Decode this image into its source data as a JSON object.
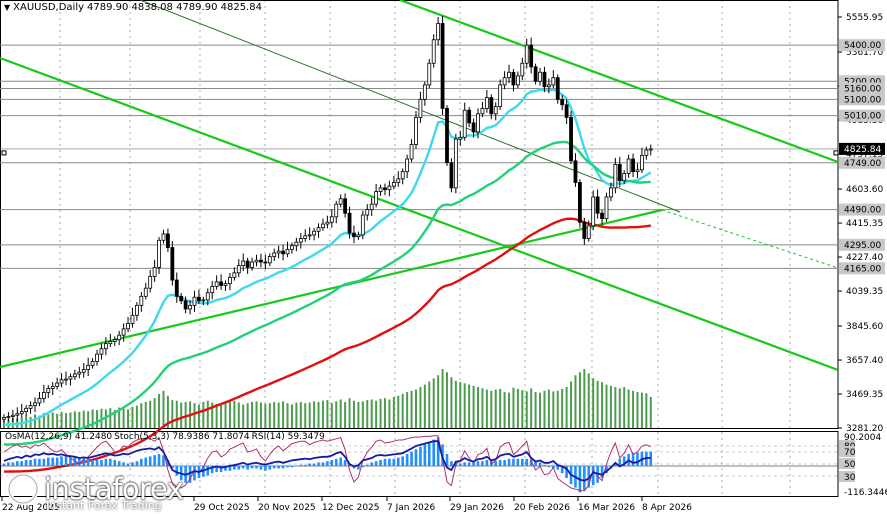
{
  "header": {
    "symbol_timeframe": "XAUUSD,Daily",
    "ohlc": "4789.90 4838.08 4789.90 4825.84"
  },
  "subwindow": {
    "osma_label": "OsMA(12,26,9) 41.2480",
    "stoch_label": "Stoch(5,3,3) 78.9386 71.8074",
    "rsi_label": "RSI(14) 59.3479"
  },
  "watermark": {
    "name": "instaforex",
    "tagline": "Instant Forex Trading"
  },
  "colors": {
    "candles": "#000000",
    "ema_fast": "#3dd9ef",
    "ema_mid": "#22d07a",
    "ema_slow": "#e01010",
    "channel": "#18c818",
    "hlines": "#8a8a8a",
    "volume": "#2e8b2e",
    "osma": "#1e90ff",
    "rsi": "#1a1aa0",
    "stoch": "#b03070"
  },
  "chart_data": {
    "type": "candlestick",
    "symbol": "XAUUSD",
    "timeframe": "Daily",
    "price_axis_ticks": [
      5555.95,
      5361.7,
      5173.55,
      4985.3,
      4797.15,
      4603.6,
      4415.35,
      4227.4,
      4039.35,
      3845.6,
      3657.4,
      3469.35,
      3281.2
    ],
    "price_range": [
      3281.2,
      5650
    ],
    "horizontal_levels": [
      "5400.00",
      "5200.00",
      "5160.00",
      "5100.00",
      "5010.00",
      "4749.00",
      "4490.00",
      "4295.00",
      "4165.00"
    ],
    "current_price": "4825.84",
    "time_axis_labels": [
      "22 Aug 2025",
      "29 Oct 2025",
      "20 Nov 2025",
      "12 Dec 2025",
      "7 Jan 2026",
      "29 Jan 2026",
      "20 Feb 2026",
      "16 Mar 2026",
      "8 Apr 2026"
    ],
    "moving_averages": [
      {
        "color": "#3dd9ef",
        "current": 4740
      },
      {
        "color": "#22d07a",
        "current": 4490
      },
      {
        "color": "#e01010",
        "current": 4295
      }
    ],
    "indicator_axis_labels": [
      "90.2004",
      "80",
      "70",
      "50",
      "30",
      "-116.3446"
    ],
    "closes": [
      3340,
      3345,
      3352,
      3360,
      3372,
      3390,
      3405,
      3420,
      3445,
      3478,
      3500,
      3512,
      3530,
      3548,
      3552,
      3565,
      3580,
      3590,
      3605,
      3628,
      3650,
      3690,
      3720,
      3748,
      3760,
      3770,
      3795,
      3830,
      3860,
      3905,
      3960,
      4010,
      4055,
      4120,
      4170,
      4320,
      4355,
      4280,
      4100,
      4010,
      3985,
      3940,
      3960,
      4005,
      3985,
      3990,
      4030,
      4065,
      4090,
      4070,
      4080,
      4115,
      4140,
      4180,
      4205,
      4170,
      4200,
      4210,
      4200,
      4195,
      4230,
      4250,
      4260,
      4245,
      4270,
      4290,
      4310,
      4330,
      4345,
      4350,
      4370,
      4390,
      4410,
      4420,
      4450,
      4520,
      4550,
      4470,
      4360,
      4340,
      4350,
      4460,
      4490,
      4520,
      4590,
      4610,
      4600,
      4620,
      4640,
      4660,
      4700,
      4770,
      4850,
      5000,
      5100,
      5180,
      5300,
      5430,
      5520,
      5050,
      4750,
      4610,
      4880,
      4890,
      5040,
      4970,
      4920,
      5020,
      5050,
      5110,
      5020,
      5060,
      5180,
      5220,
      5250,
      5180,
      5230,
      5300,
      5400,
      5280,
      5200,
      5250,
      5170,
      5180,
      5220,
      5100,
      5070,
      5000,
      4760,
      4640,
      4420,
      4330,
      4400,
      4560,
      4470,
      4440,
      4560,
      4610,
      4740,
      4650,
      4690,
      4770,
      4700,
      4710,
      4790,
      4820,
      4826
    ],
    "volumes": [
      12,
      14,
      16,
      15,
      18,
      20,
      18,
      22,
      20,
      24,
      22,
      25,
      23,
      26,
      24,
      25,
      27,
      26,
      28,
      27,
      30,
      29,
      31,
      30,
      32,
      29,
      33,
      31,
      30,
      34,
      36,
      40,
      42,
      44,
      48,
      55,
      60,
      52,
      45,
      44,
      41,
      42,
      43,
      40,
      38,
      42,
      44,
      41,
      39,
      40,
      42,
      43,
      44,
      41,
      38,
      40,
      42,
      43,
      41,
      39,
      40,
      42,
      41,
      43,
      40,
      38,
      41,
      42,
      40,
      41,
      43,
      42,
      44,
      45,
      40,
      43,
      46,
      42,
      48,
      44,
      42,
      43,
      45,
      46,
      44,
      47,
      48,
      46,
      50,
      52,
      55,
      58,
      60,
      62,
      66,
      70,
      75,
      80,
      85,
      95,
      90,
      82,
      76,
      74,
      72,
      70,
      68,
      66,
      64,
      62,
      60,
      62,
      63,
      58,
      57,
      65,
      63,
      61,
      59,
      64,
      58,
      57,
      60,
      62,
      59,
      60,
      63,
      66,
      75,
      85,
      90,
      95,
      88,
      80,
      76,
      74,
      70,
      68,
      66,
      64,
      66,
      62,
      60,
      58,
      57,
      56,
      50
    ],
    "osma": [
      2,
      3,
      3,
      4,
      4,
      5,
      5,
      6,
      6,
      6,
      7,
      7,
      7,
      8,
      8,
      7,
      7,
      7,
      6,
      6,
      5,
      5,
      5,
      6,
      6,
      5,
      4,
      3,
      2,
      3,
      4,
      6,
      7,
      8,
      9,
      10,
      9,
      5,
      -2,
      -8,
      -12,
      -14,
      -14,
      -12,
      -10,
      -9,
      -8,
      -6,
      -5,
      -5,
      -4,
      -4,
      -3,
      -3,
      -2,
      -3,
      -2,
      -2,
      -3,
      -4,
      -3,
      -2,
      -2,
      -2,
      -1,
      -1,
      0,
      1,
      1,
      2,
      2,
      3,
      3,
      4,
      5,
      6,
      7,
      5,
      2,
      -2,
      -3,
      -1,
      1,
      3,
      4,
      5,
      6,
      6,
      6,
      7,
      8,
      10,
      12,
      14,
      16,
      18,
      20,
      22,
      24,
      18,
      10,
      4,
      2,
      2,
      3,
      3,
      3,
      4,
      4,
      5,
      4,
      4,
      5,
      5,
      6,
      6,
      6,
      6,
      6,
      5,
      4,
      3,
      1,
      -1,
      -2,
      -3,
      -6,
      -10,
      -15,
      -18,
      -22,
      -20,
      -18,
      -16,
      -14,
      -10,
      -6,
      -2,
      2,
      6,
      8,
      10,
      11,
      11,
      12,
      12,
      12
    ],
    "rsi": [
      55,
      58,
      60,
      62,
      60,
      64,
      62,
      66,
      65,
      68,
      66,
      67,
      65,
      66,
      64,
      63,
      62,
      60,
      61,
      60,
      62,
      64,
      66,
      68,
      66,
      64,
      65,
      67,
      66,
      69,
      72,
      74,
      75,
      76,
      74,
      78,
      70,
      55,
      40,
      36,
      34,
      32,
      35,
      38,
      37,
      39,
      42,
      44,
      46,
      44,
      45,
      47,
      48,
      50,
      52,
      49,
      51,
      52,
      50,
      49,
      51,
      53,
      54,
      52,
      54,
      56,
      57,
      58,
      59,
      58,
      60,
      61,
      62,
      62,
      64,
      68,
      70,
      62,
      50,
      46,
      48,
      56,
      58,
      60,
      64,
      65,
      64,
      65,
      66,
      67,
      68,
      72,
      76,
      80,
      82,
      84,
      86,
      88,
      88,
      60,
      44,
      40,
      54,
      55,
      60,
      56,
      54,
      58,
      59,
      62,
      56,
      58,
      64,
      66,
      67,
      62,
      64,
      66,
      70,
      60,
      54,
      56,
      52,
      52,
      55,
      48,
      46,
      42,
      32,
      28,
      24,
      22,
      26,
      36,
      34,
      32,
      38,
      44,
      52,
      46,
      50,
      56,
      52,
      53,
      58,
      60,
      60
    ],
    "stoch": [
      70,
      75,
      80,
      82,
      78,
      80,
      76,
      82,
      80,
      85,
      78,
      72,
      70,
      74,
      66,
      60,
      55,
      50,
      58,
      62,
      70,
      78,
      85,
      88,
      80,
      70,
      72,
      80,
      78,
      86,
      90,
      92,
      93,
      92,
      88,
      94,
      72,
      40,
      18,
      12,
      10,
      15,
      25,
      40,
      35,
      45,
      60,
      70,
      72,
      62,
      66,
      75,
      78,
      82,
      85,
      70,
      72,
      75,
      62,
      55,
      66,
      75,
      80,
      72,
      78,
      84,
      86,
      88,
      88,
      82,
      86,
      88,
      90,
      88,
      90,
      92,
      94,
      74,
      40,
      20,
      28,
      56,
      70,
      78,
      88,
      90,
      85,
      86,
      88,
      90,
      90,
      92,
      94,
      95,
      95,
      96,
      96,
      97,
      97,
      60,
      20,
      14,
      50,
      56,
      72,
      60,
      52,
      66,
      68,
      76,
      50,
      56,
      78,
      84,
      86,
      66,
      72,
      80,
      88,
      55,
      40,
      46,
      32,
      34,
      44,
      26,
      20,
      15,
      10,
      8,
      6,
      5,
      15,
      40,
      30,
      22,
      50,
      70,
      85,
      60,
      68,
      82,
      66,
      70,
      80,
      82,
      79
    ]
  }
}
